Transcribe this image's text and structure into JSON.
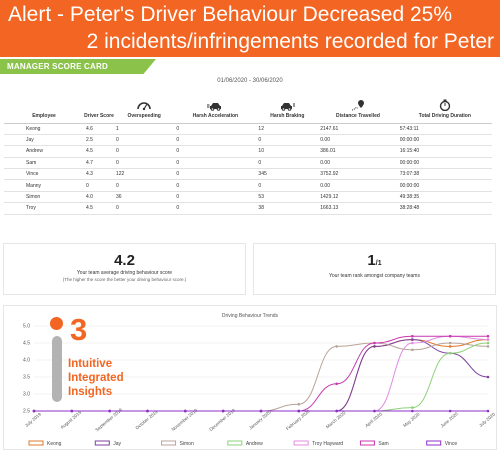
{
  "alert": {
    "line1": "Alert - Peter's Driver Behaviour Decreased 25%",
    "line2": "2 incidents/infringements recorded for Peter"
  },
  "scorecard_tag": "MANAGER SCORE CARD",
  "date_range": "01/06/2020 - 30/06/2020",
  "table": {
    "headers": [
      "Employee",
      "Driver Score",
      "Overspeeding",
      "Harsh Acceleration",
      "Harsh Braking",
      "Distance Travelled",
      "Total Driving Duration"
    ],
    "header_icons": [
      "",
      "",
      "speedometer-icon",
      "car-acceleration-icon",
      "car-braking-icon",
      "route-pin-icon",
      "stopwatch-icon"
    ],
    "rows": [
      [
        "Keong",
        "4.6",
        "1",
        "0",
        "12",
        "2147.61",
        "57:43:11"
      ],
      [
        "Jay",
        "2.5",
        "0",
        "0",
        "0",
        "0.00",
        "00:00:00"
      ],
      [
        "Andrew",
        "4.5",
        "0",
        "0",
        "10",
        "386.01",
        "16:15:40"
      ],
      [
        "Sam",
        "4.7",
        "0",
        "0",
        "0",
        "0.00",
        "00:00:00"
      ],
      [
        "Vince",
        "4.3",
        "122",
        "0",
        "345",
        "3752.92",
        "73:07:38"
      ],
      [
        "Manny",
        "0",
        "0",
        "0",
        "0",
        "0.00",
        "00:00:00"
      ],
      [
        "Simon",
        "4.0",
        "36",
        "0",
        "53",
        "1429.12",
        "49:38:35"
      ],
      [
        "Troy",
        "4.5",
        "0",
        "0",
        "38",
        "1663.13",
        "38:28:48"
      ]
    ]
  },
  "cards": {
    "avg_score": "4.2",
    "avg_caption": "Your team average driving behaviour score",
    "avg_sub": "(The higher the score the better your driving behaviour score.)",
    "rank": "1",
    "rank_of": "/1",
    "rank_caption": "Your team rank amongst company teams"
  },
  "insight": {
    "number": "3",
    "line1": "Intuitive",
    "line2": "Integrated",
    "line3": "Insights"
  },
  "colors": {
    "alert_bg": "#f26522",
    "tag_bg": "#8bc34a",
    "accent": "#f26522"
  },
  "chart_data": {
    "type": "line",
    "title": "Driving Behaviour Trends",
    "ylim": [
      2.5,
      5.0
    ],
    "yticks": [
      "2.5",
      "3.0",
      "3.5",
      "4.0",
      "4.5",
      "5.0"
    ],
    "categories": [
      "July 2019",
      "August 2019",
      "September 2019",
      "October 2019",
      "November 2019",
      "December 2019",
      "January 2020",
      "February 2020",
      "March 2020",
      "April 2020",
      "May 2020",
      "June 2020",
      "July 2020"
    ],
    "series": [
      {
        "name": "Keong",
        "color": "#e0782b",
        "values": [
          2.5,
          2.5,
          2.5,
          2.5,
          2.5,
          2.5,
          2.5,
          2.5,
          2.5,
          4.4,
          4.6,
          4.4,
          4.6
        ]
      },
      {
        "name": "Jay",
        "color": "#7b3fa0",
        "values": [
          2.5,
          2.5,
          2.5,
          2.5,
          2.5,
          2.5,
          2.5,
          2.5,
          2.5,
          4.4,
          4.6,
          4.2,
          3.5
        ]
      },
      {
        "name": "Simon",
        "color": "#b8a398",
        "values": [
          2.5,
          2.5,
          2.5,
          2.5,
          2.5,
          2.5,
          2.5,
          2.7,
          4.4,
          4.5,
          4.3,
          4.5,
          4.4
        ]
      },
      {
        "name": "Andrew",
        "color": "#8fd17a",
        "values": [
          2.5,
          2.5,
          2.5,
          2.5,
          2.5,
          2.5,
          2.5,
          2.5,
          2.5,
          2.5,
          2.6,
          4.2,
          4.5
        ]
      },
      {
        "name": "Troy Hayward",
        "color": "#e08de0",
        "values": [
          2.5,
          2.5,
          2.5,
          2.5,
          2.5,
          2.5,
          2.5,
          2.5,
          2.5,
          2.5,
          4.5,
          4.7,
          4.6
        ]
      },
      {
        "name": "Sam",
        "color": "#c837b0",
        "values": [
          2.5,
          2.5,
          2.5,
          2.5,
          2.5,
          2.5,
          2.5,
          2.5,
          3.3,
          4.5,
          4.7,
          4.7,
          4.7
        ]
      },
      {
        "name": "Vince",
        "color": "#8b2fc9",
        "values": [
          2.5,
          2.5,
          2.5,
          2.5,
          2.5,
          2.5,
          2.5,
          2.5,
          2.5,
          2.5,
          2.5,
          2.5,
          2.5
        ]
      }
    ]
  }
}
